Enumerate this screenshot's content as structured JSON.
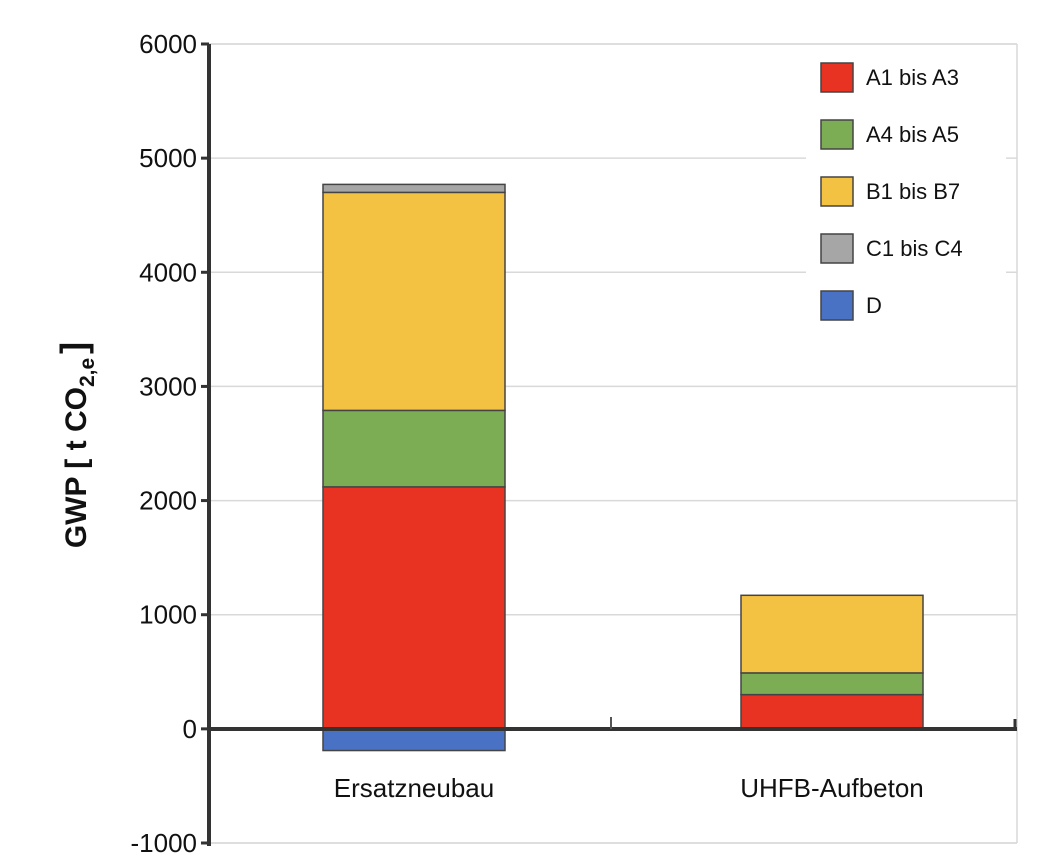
{
  "chart_data": {
    "type": "bar",
    "stacked": true,
    "categories": [
      "Ersatzneubau",
      "UHFB-Aufbeton"
    ],
    "series": [
      {
        "name": "A1 bis A3",
        "color": "#e83323",
        "values": [
          2120,
          300
        ]
      },
      {
        "name": "A4 bis A5",
        "color": "#7cad55",
        "values": [
          670,
          190
        ]
      },
      {
        "name": "B1 bis B7",
        "color": "#f4c243",
        "values": [
          1910,
          680
        ]
      },
      {
        "name": "C1 bis C4",
        "color": "#a6a6a6",
        "values": [
          70,
          0
        ]
      },
      {
        "name": "D",
        "color": "#4a72c4",
        "values": [
          -190,
          0
        ]
      }
    ],
    "ylabel": {
      "main": "GWP [ t CO",
      "sub": "2,e",
      "close": "]"
    },
    "ylim": [
      -1000,
      6000
    ],
    "yticks": [
      -1000,
      0,
      1000,
      2000,
      3000,
      4000,
      5000,
      6000
    ],
    "grid": true,
    "legend_position": "top-right"
  }
}
